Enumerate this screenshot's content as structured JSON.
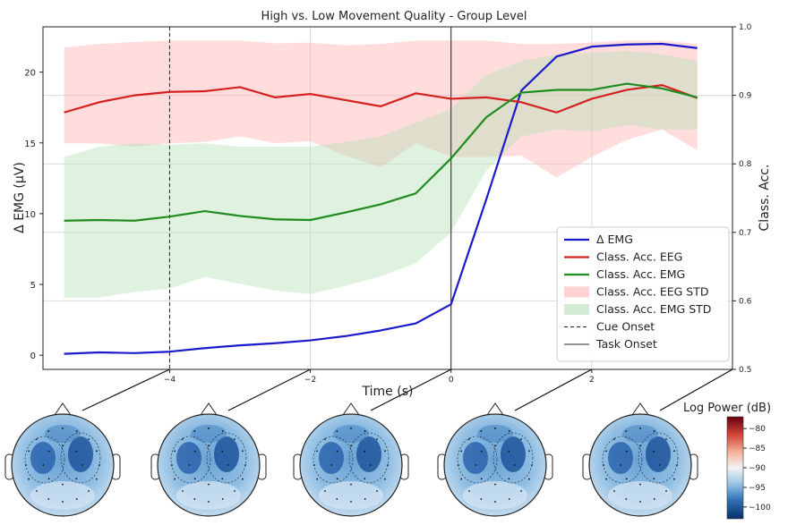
{
  "chart_data": {
    "type": "line",
    "title": "High vs. Low Movement Quality - Group Level",
    "xlabel": "Time (s)",
    "ylabel": "Δ EMG (μV)",
    "ylabel_right": "Class. Acc.",
    "xlim": [
      -5.8,
      4.0
    ],
    "ylim": [
      -1,
      23.2
    ],
    "ylim_right": [
      0.5,
      1.0
    ],
    "xticks": [
      -4,
      -2,
      0,
      2
    ],
    "xtick_labels": [
      "−4",
      "−2",
      "0",
      "2"
    ],
    "yticks": [
      0,
      5,
      10,
      15,
      20
    ],
    "yticks_right": [
      0.5,
      0.6,
      0.7,
      0.8,
      0.9,
      1.0
    ],
    "grid": true,
    "legend_position": "lower-right",
    "x": [
      -5.5,
      -5.0,
      -4.5,
      -4.0,
      -3.5,
      -3.0,
      -2.5,
      -2.0,
      -1.5,
      -1.0,
      -0.5,
      0.0,
      0.5,
      1.0,
      1.5,
      2.0,
      2.5,
      3.0,
      3.5
    ],
    "series": [
      {
        "name": "Δ EMG",
        "axis": "left",
        "color": "#1a1acc",
        "values": [
          0.1,
          0.2,
          0.15,
          0.25,
          0.5,
          0.7,
          0.85,
          1.05,
          1.35,
          1.75,
          2.25,
          3.6,
          11.0,
          18.7,
          21.1,
          21.8,
          21.95,
          22.0,
          21.7
        ]
      },
      {
        "name": "Class. Acc. EEG",
        "axis": "right",
        "color": "#d62020",
        "values": [
          0.875,
          0.89,
          0.9,
          0.905,
          0.906,
          0.912,
          0.897,
          0.902,
          0.893,
          0.884,
          0.903,
          0.895,
          0.897,
          0.89,
          0.875,
          0.895,
          0.908,
          0.915,
          0.896
        ]
      },
      {
        "name": "Class. Acc. EMG",
        "axis": "right",
        "color": "#1e8c1e",
        "values": [
          0.717,
          0.718,
          0.717,
          0.723,
          0.731,
          0.724,
          0.719,
          0.718,
          0.729,
          0.741,
          0.757,
          0.808,
          0.868,
          0.904,
          0.908,
          0.908,
          0.917,
          0.91,
          0.897
        ]
      },
      {
        "name": "Class. Acc. EEG STD",
        "axis": "right",
        "color": "#ffb3b3",
        "type": "band",
        "upper": [
          0.97,
          0.975,
          0.978,
          0.98,
          0.98,
          0.98,
          0.976,
          0.977,
          0.973,
          0.975,
          0.98,
          0.98,
          0.98,
          0.975,
          0.975,
          0.977,
          0.98,
          0.98,
          0.975
        ],
        "lower": [
          0.83,
          0.83,
          0.825,
          0.83,
          0.832,
          0.84,
          0.83,
          0.833,
          0.812,
          0.795,
          0.83,
          0.81,
          0.81,
          0.812,
          0.78,
          0.81,
          0.835,
          0.85,
          0.82
        ]
      },
      {
        "name": "Class. Acc. EMG STD",
        "axis": "right",
        "color": "#b8e0b8",
        "type": "band",
        "upper": [
          0.81,
          0.825,
          0.83,
          0.828,
          0.83,
          0.825,
          0.825,
          0.825,
          0.832,
          0.84,
          0.86,
          0.88,
          0.93,
          0.95,
          0.96,
          0.962,
          0.965,
          0.96,
          0.95
        ],
        "lower": [
          0.605,
          0.605,
          0.613,
          0.618,
          0.635,
          0.625,
          0.615,
          0.61,
          0.622,
          0.636,
          0.655,
          0.7,
          0.79,
          0.84,
          0.85,
          0.847,
          0.857,
          0.85,
          0.85
        ]
      }
    ],
    "vlines": [
      {
        "name": "Cue Onset",
        "x": -4,
        "style": "dashed"
      },
      {
        "name": "Task Onset",
        "x": 0,
        "style": "solid"
      }
    ],
    "topomaps": {
      "count": 5,
      "times": [
        -4,
        -2,
        0,
        2,
        4
      ]
    },
    "colorbar": {
      "label": "Log Power (dB)",
      "ticks": [
        -80,
        -85,
        -90,
        -95,
        -100
      ],
      "tick_labels": [
        "−80",
        "−85",
        "−90",
        "−95",
        "−100"
      ],
      "range": [
        -103,
        -77
      ]
    }
  }
}
